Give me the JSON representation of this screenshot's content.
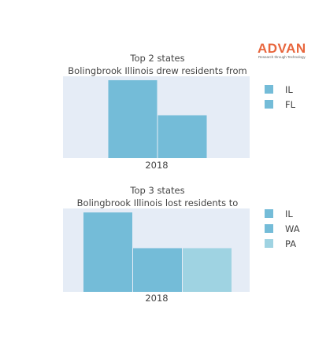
{
  "brand": {
    "name": "ADVAN",
    "tagline": "Research through Technology",
    "color": "#e8663d"
  },
  "chart_data": [
    {
      "type": "bar",
      "title": "Top 2 states",
      "subtitle": "Bolingbrook Illinois drew residents from",
      "categories": [
        "2018"
      ],
      "series": [
        {
          "name": "IL",
          "values": [
            100
          ],
          "color": "#74bcd8"
        },
        {
          "name": "FL",
          "values": [
            55
          ],
          "color": "#74bcd8"
        }
      ],
      "ylim": [
        0,
        105
      ],
      "grid": false,
      "legend": "right"
    },
    {
      "type": "bar",
      "title": "Top 3 states",
      "subtitle": "Bolingbrook Illinois lost residents to",
      "categories": [
        "2018"
      ],
      "series": [
        {
          "name": "IL",
          "values": [
            100
          ],
          "color": "#74bcd8"
        },
        {
          "name": "WA",
          "values": [
            55
          ],
          "color": "#74bcd8"
        },
        {
          "name": "PA",
          "values": [
            55
          ],
          "color": "#9fd3e2"
        }
      ],
      "ylim": [
        0,
        105
      ],
      "grid": false,
      "legend": "right"
    }
  ]
}
